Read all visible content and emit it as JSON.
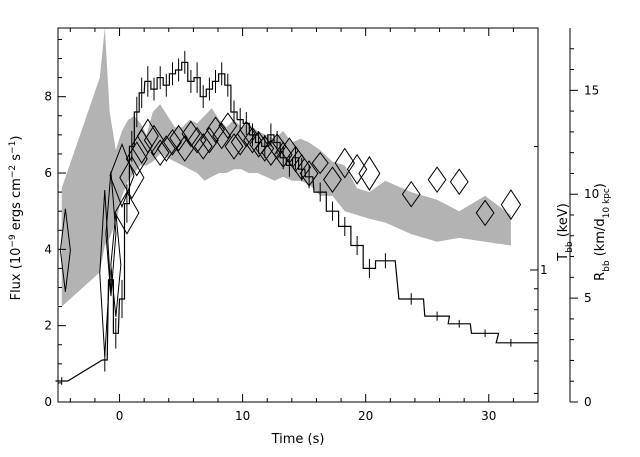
{
  "chart_data": {
    "type": "line",
    "xlabel": "Time (s)",
    "ylabel_left_html": "Flux (10<sup>−9</sup> ergs cm<sup>−2</sup> s<sup>−1</sup>)",
    "ylabel_left_text": "Flux (10^-9 ergs cm^-2 s^-1)",
    "ylabel_right_inner": "T_bb (keV)",
    "ylabel_right_outer": "R_bb (km/d_10 kpc)",
    "xlim": [
      -5,
      34
    ],
    "ylim_flux": [
      0,
      9.8
    ],
    "ylim_radius": [
      0,
      18.0
    ],
    "x_ticks": [
      "0",
      "10",
      "20",
      "30"
    ],
    "y_ticks_flux": [
      "0",
      "2",
      "4",
      "6",
      "8"
    ],
    "y_ticks_radius": [
      "0",
      "5",
      "10",
      "15"
    ],
    "y_ticks_temperature": [
      "1"
    ],
    "temperature_scale": "log",
    "series": [
      {
        "name": "Flux",
        "style": "histogram with error bars",
        "color": "#000000",
        "x": [
          -4.7,
          -1.2,
          -0.7,
          -0.3,
          0.2,
          0.6,
          1.0,
          1.4,
          1.8,
          2.3,
          2.8,
          3.3,
          3.8,
          4.3,
          4.8,
          5.3,
          5.8,
          6.3,
          6.8,
          7.3,
          7.8,
          8.3,
          8.8,
          9.3,
          9.8,
          10.3,
          10.8,
          11.3,
          11.8,
          12.3,
          12.8,
          13.3,
          13.8,
          14.3,
          14.8,
          15.4,
          16.3,
          17.3,
          18.3,
          19.3,
          20.3,
          21.6,
          23.7,
          25.8,
          27.6,
          29.7,
          31.8
        ],
        "y": [
          0.55,
          1.1,
          3.2,
          1.8,
          2.7,
          5.2,
          6.7,
          7.6,
          8.1,
          8.4,
          8.2,
          8.5,
          8.3,
          8.6,
          8.7,
          8.9,
          8.4,
          8.5,
          8.0,
          8.2,
          8.4,
          8.6,
          8.3,
          7.6,
          7.4,
          7.3,
          7.0,
          6.8,
          6.7,
          7.0,
          6.8,
          6.4,
          6.2,
          6.4,
          6.1,
          5.9,
          5.5,
          5.0,
          4.6,
          4.1,
          3.5,
          3.7,
          2.7,
          2.25,
          2.05,
          1.8,
          1.55
        ],
        "xerr": [
          0.5,
          0.2,
          0.2,
          0.2,
          0.2,
          0.2,
          0.2,
          0.2,
          0.2,
          0.25,
          0.25,
          0.25,
          0.25,
          0.25,
          0.25,
          0.25,
          0.25,
          0.25,
          0.25,
          0.25,
          0.25,
          0.25,
          0.25,
          0.25,
          0.25,
          0.25,
          0.25,
          0.25,
          0.25,
          0.25,
          0.25,
          0.25,
          0.25,
          0.25,
          0.25,
          0.3,
          0.5,
          0.5,
          0.5,
          0.5,
          0.5,
          0.8,
          1.0,
          1.0,
          0.9,
          1.1,
          1.2
        ],
        "yerr": [
          0.1,
          0.3,
          0.3,
          0.4,
          0.5,
          0.5,
          0.4,
          0.4,
          0.4,
          0.4,
          0.3,
          0.3,
          0.3,
          0.3,
          0.3,
          0.3,
          0.3,
          0.4,
          0.3,
          0.3,
          0.3,
          0.3,
          0.3,
          0.3,
          0.3,
          0.3,
          0.3,
          0.3,
          0.3,
          0.3,
          0.3,
          0.3,
          0.3,
          0.3,
          0.3,
          0.3,
          0.25,
          0.25,
          0.25,
          0.25,
          0.25,
          0.2,
          0.15,
          0.12,
          0.1,
          0.1,
          0.1
        ]
      },
      {
        "name": "Blackbody temperature kT_bb (keV)",
        "style": "grey band (1-sigma range)",
        "color": "#b3b3b3",
        "x": [
          -4.7,
          -1.6,
          -1.2,
          -0.8,
          -0.3,
          0.2,
          0.7,
          1.2,
          1.7,
          2.2,
          2.7,
          3.3,
          3.9,
          4.5,
          5.1,
          5.7,
          6.3,
          6.9,
          7.5,
          8.1,
          8.7,
          9.3,
          9.9,
          10.5,
          11.2,
          11.9,
          12.6,
          13.3,
          14.0,
          14.7,
          15.4,
          16.3,
          17.3,
          18.3,
          19.3,
          20.3,
          21.6,
          23.7,
          25.8,
          27.6,
          29.7,
          31.8
        ],
        "y_low": [
          2.5,
          3.4,
          4.1,
          4.3,
          4.7,
          5.4,
          5.8,
          6.0,
          6.2,
          6.2,
          6.3,
          6.5,
          6.4,
          6.3,
          6.2,
          6.1,
          6.0,
          5.8,
          5.9,
          6.0,
          6.0,
          6.1,
          6.1,
          6.0,
          6.0,
          5.9,
          5.8,
          5.9,
          5.8,
          5.8,
          5.7,
          5.4,
          5.4,
          5.0,
          4.9,
          4.8,
          4.7,
          4.4,
          4.2,
          4.3,
          4.2,
          4.1
        ],
        "y_high": [
          5.6,
          8.5,
          9.8,
          7.6,
          6.6,
          7.1,
          7.4,
          7.5,
          7.3,
          7.0,
          7.6,
          7.8,
          7.5,
          7.2,
          7.2,
          7.4,
          7.3,
          7.5,
          7.7,
          7.4,
          7.2,
          7.4,
          7.2,
          7.3,
          7.1,
          7.0,
          6.9,
          7.1,
          6.8,
          6.9,
          6.8,
          6.6,
          6.3,
          6.2,
          5.6,
          5.5,
          5.8,
          5.5,
          5.3,
          5.0,
          5.4,
          4.9
        ]
      },
      {
        "name": "Blackbody radius R_bb (km/d_10kpc)",
        "style": "open diamonds with error extent",
        "color": "#000000",
        "x": [
          -4.4,
          -1.2,
          -0.7,
          -0.3,
          0.2,
          0.6,
          1.0,
          1.4,
          1.8,
          2.3,
          2.8,
          3.3,
          3.8,
          4.3,
          4.8,
          5.3,
          5.8,
          6.3,
          6.8,
          7.3,
          7.8,
          8.3,
          8.8,
          9.3,
          9.8,
          10.3,
          10.8,
          11.3,
          11.8,
          12.3,
          12.8,
          13.3,
          13.8,
          14.3,
          14.8,
          15.4,
          16.3,
          17.3,
          18.3,
          19.3,
          20.3,
          23.7,
          25.8,
          27.6,
          29.7,
          31.8
        ],
        "y": [
          7.3,
          6.2,
          8.1,
          6.6,
          10.9,
          9.1,
          10.8,
          11.7,
          12.3,
          12.8,
          12.6,
          12.0,
          12.2,
          12.5,
          12.7,
          12.2,
          12.9,
          12.6,
          12.3,
          12.6,
          13.1,
          12.8,
          13.3,
          12.3,
          12.5,
          12.9,
          12.6,
          12.4,
          12.2,
          12.0,
          12.3,
          11.9,
          12.1,
          11.7,
          11.3,
          11.0,
          11.5,
          10.7,
          11.5,
          11.2,
          11.0,
          10.0,
          10.7,
          10.6,
          9.1,
          9.5
        ],
        "yerr": [
          2.0,
          4.0,
          3.0,
          2.5,
          1.5,
          1.0,
          1.0,
          0.8,
          0.8,
          0.8,
          0.7,
          0.6,
          0.6,
          0.6,
          0.6,
          0.6,
          0.6,
          0.6,
          0.6,
          0.6,
          0.6,
          0.6,
          0.6,
          0.6,
          0.6,
          0.6,
          0.6,
          0.6,
          0.6,
          0.6,
          0.6,
          0.6,
          0.6,
          0.6,
          0.6,
          0.6,
          0.5,
          0.6,
          0.7,
          0.7,
          0.8,
          0.6,
          0.6,
          0.6,
          0.6,
          0.7
        ]
      }
    ]
  }
}
